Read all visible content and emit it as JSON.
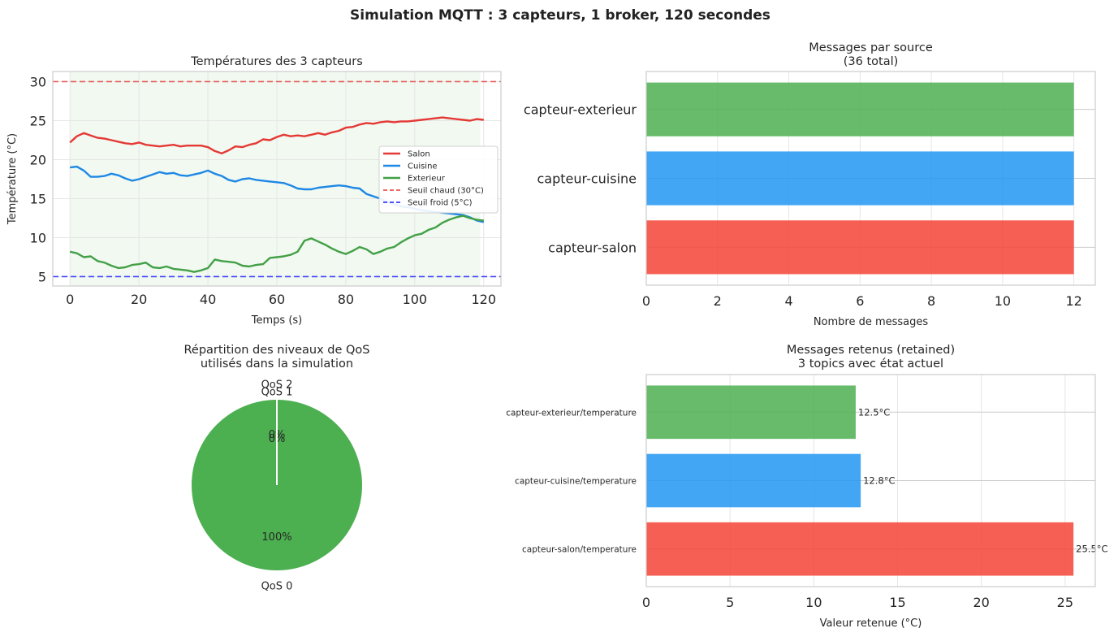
{
  "suptitle": "Simulation MQTT : 3 capteurs, 1 broker, 120 secondes",
  "chart_data": [
    {
      "type": "line",
      "title": "Températures des 3 capteurs",
      "xlabel": "Temps (s)",
      "ylabel": "Température (°C)",
      "xlim": [
        -5,
        125
      ],
      "ylim": [
        3.8,
        31.3
      ],
      "xticks": [
        0,
        20,
        40,
        60,
        80,
        100,
        120
      ],
      "yticks": [
        5,
        10,
        15,
        20,
        25,
        30
      ],
      "grid": true,
      "legend_position": "center-right",
      "shaded_x_range": [
        0,
        119
      ],
      "series": [
        {
          "name": "Salon",
          "color": "#e53935",
          "x": [
            0,
            2,
            4,
            6,
            8,
            10,
            12,
            14,
            16,
            18,
            20,
            22,
            24,
            26,
            28,
            30,
            32,
            34,
            36,
            38,
            40,
            42,
            44,
            46,
            48,
            50,
            52,
            54,
            56,
            58,
            60,
            62,
            64,
            66,
            68,
            70,
            72,
            74,
            76,
            78,
            80,
            82,
            84,
            86,
            88,
            90,
            92,
            94,
            96,
            98,
            100,
            102,
            104,
            106,
            108,
            110,
            112,
            114,
            116,
            118,
            120
          ],
          "values": [
            22.2,
            23.0,
            23.4,
            23.1,
            22.8,
            22.7,
            22.5,
            22.3,
            22.1,
            22.0,
            22.2,
            21.9,
            21.8,
            21.7,
            21.8,
            21.9,
            21.7,
            21.8,
            21.8,
            21.8,
            21.6,
            21.1,
            20.8,
            21.2,
            21.7,
            21.6,
            21.9,
            22.1,
            22.6,
            22.5,
            22.9,
            23.2,
            23.0,
            23.1,
            23.0,
            23.2,
            23.4,
            23.2,
            23.5,
            23.7,
            24.1,
            24.2,
            24.5,
            24.7,
            24.6,
            24.8,
            24.9,
            24.8,
            24.9,
            24.9,
            25.0,
            25.1,
            25.2,
            25.3,
            25.4,
            25.3,
            25.2,
            25.1,
            25.0,
            25.2,
            25.1
          ]
        },
        {
          "name": "Cuisine",
          "color": "#1e88e5",
          "x": [
            0,
            2,
            4,
            6,
            8,
            10,
            12,
            14,
            16,
            18,
            20,
            22,
            24,
            26,
            28,
            30,
            32,
            34,
            36,
            38,
            40,
            42,
            44,
            46,
            48,
            50,
            52,
            54,
            56,
            58,
            60,
            62,
            64,
            66,
            68,
            70,
            72,
            74,
            76,
            78,
            80,
            82,
            84,
            86,
            88,
            90,
            92,
            94,
            96,
            98,
            100,
            102,
            104,
            106,
            108,
            110,
            112,
            114,
            116,
            118,
            120
          ],
          "values": [
            19.0,
            19.1,
            18.6,
            17.8,
            17.8,
            17.9,
            18.2,
            18.0,
            17.6,
            17.3,
            17.5,
            17.8,
            18.1,
            18.4,
            18.2,
            18.3,
            18.0,
            17.9,
            18.1,
            18.3,
            18.6,
            18.2,
            17.9,
            17.4,
            17.2,
            17.5,
            17.6,
            17.4,
            17.3,
            17.2,
            17.1,
            17.0,
            16.7,
            16.3,
            16.2,
            16.2,
            16.4,
            16.5,
            16.6,
            16.7,
            16.6,
            16.4,
            16.3,
            15.6,
            15.3,
            15.0,
            14.6,
            14.3,
            14.0,
            13.9,
            13.7,
            13.5,
            13.4,
            13.3,
            13.2,
            13.1,
            13.0,
            12.9,
            12.6,
            12.2,
            12.0
          ]
        },
        {
          "name": "Exterieur",
          "color": "#43a047",
          "x": [
            0,
            2,
            4,
            6,
            8,
            10,
            12,
            14,
            16,
            18,
            20,
            22,
            24,
            26,
            28,
            30,
            32,
            34,
            36,
            38,
            40,
            42,
            44,
            46,
            48,
            50,
            52,
            54,
            56,
            58,
            60,
            62,
            64,
            66,
            68,
            70,
            72,
            74,
            76,
            78,
            80,
            82,
            84,
            86,
            88,
            90,
            92,
            94,
            96,
            98,
            100,
            102,
            104,
            106,
            108,
            110,
            112,
            114,
            116,
            118,
            120
          ],
          "values": [
            8.2,
            8.0,
            7.5,
            7.6,
            7.0,
            6.8,
            6.4,
            6.1,
            6.2,
            6.5,
            6.6,
            6.8,
            6.2,
            6.1,
            6.3,
            6.0,
            5.9,
            5.8,
            5.6,
            5.8,
            6.1,
            7.2,
            7.0,
            6.9,
            6.8,
            6.4,
            6.3,
            6.5,
            6.6,
            7.4,
            7.5,
            7.6,
            7.8,
            8.2,
            9.6,
            9.9,
            9.5,
            9.1,
            8.6,
            8.2,
            7.9,
            8.3,
            8.8,
            8.5,
            7.9,
            8.2,
            8.6,
            8.8,
            9.4,
            9.9,
            10.3,
            10.5,
            11.0,
            11.3,
            11.9,
            12.3,
            12.6,
            12.8,
            12.5,
            12.3,
            12.2
          ]
        }
      ],
      "thresholds": [
        {
          "name": "Seuil chaud (30°C)",
          "value": 30,
          "color": "#e53935"
        },
        {
          "name": "Seuil froid (5°C)",
          "value": 5,
          "color": "#1a1aff"
        }
      ]
    },
    {
      "type": "bar",
      "orientation": "horizontal",
      "title_lines": [
        "Messages par source",
        "(36 total)"
      ],
      "xlabel": "Nombre de messages",
      "xlim": [
        0,
        12.6
      ],
      "xticks": [
        0,
        2,
        4,
        6,
        8,
        10,
        12
      ],
      "categories": [
        "capteur-salon",
        "capteur-cuisine",
        "capteur-exterieur"
      ],
      "values": [
        12,
        12,
        12
      ],
      "colors": [
        "#f44336",
        "#2196f3",
        "#4caf50"
      ]
    },
    {
      "type": "pie",
      "title_lines": [
        "Répartition des niveaux de QoS",
        "utilisés dans la simulation"
      ],
      "labels": [
        "QoS 0",
        "QoS 1",
        "QoS 2"
      ],
      "values": [
        100,
        0,
        0
      ],
      "pct_labels": [
        "100%",
        "0%",
        "0%"
      ],
      "colors": [
        "#4caf50",
        "#2196f3",
        "#ff9800"
      ]
    },
    {
      "type": "bar",
      "orientation": "horizontal",
      "title_lines": [
        "Messages retenus (retained)",
        "3 topics avec état actuel"
      ],
      "xlabel": "Valeur retenue (°C)",
      "xlim": [
        0,
        26.8
      ],
      "xticks": [
        0,
        5,
        10,
        15,
        20,
        25
      ],
      "categories": [
        "capteur-salon/temperature",
        "capteur-cuisine/temperature",
        "capteur-exterieur/temperature"
      ],
      "values": [
        25.5,
        12.8,
        12.5
      ],
      "value_labels": [
        "25.5°C",
        "12.8°C",
        "12.5°C"
      ],
      "colors": [
        "#f44336",
        "#2196f3",
        "#4caf50"
      ]
    }
  ]
}
